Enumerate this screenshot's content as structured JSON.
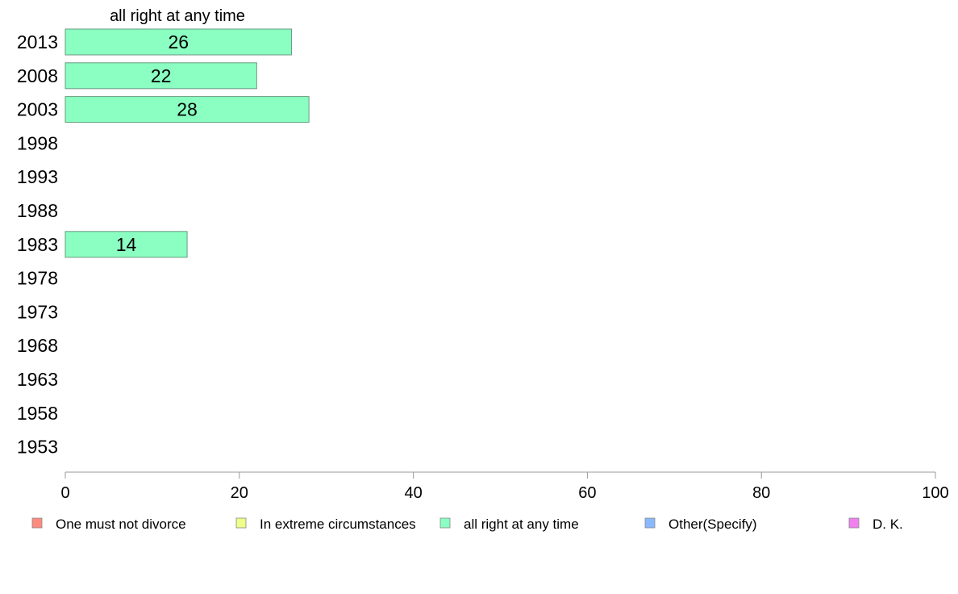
{
  "chart_data": {
    "type": "bar",
    "orientation": "horizontal",
    "categories": [
      "2013",
      "2008",
      "2003",
      "1998",
      "1993",
      "1988",
      "1983",
      "1978",
      "1973",
      "1968",
      "1963",
      "1958",
      "1953"
    ],
    "series": [
      {
        "name": "all right at any time",
        "values": [
          26,
          22,
          28,
          null,
          null,
          null,
          14,
          null,
          null,
          null,
          null,
          null,
          null
        ]
      }
    ],
    "data_labels": [
      "26",
      "22",
      "28",
      "",
      "",
      "",
      "14",
      "",
      "",
      "",
      "",
      "",
      ""
    ],
    "title": "all right at any time",
    "xlabel": "",
    "ylabel": "",
    "xlim": [
      0,
      100
    ],
    "xticks": [
      0,
      20,
      40,
      60,
      80,
      100
    ],
    "grid": false,
    "legend_position": "bottom",
    "legend": [
      {
        "label": "One must not divorce",
        "color": "#ff8a80"
      },
      {
        "label": "In extreme circumstances",
        "color": "#eeff8a"
      },
      {
        "label": "all right at any time",
        "color": "#8affc1"
      },
      {
        "label": "Other(Specify)",
        "color": "#8ab8ff"
      },
      {
        "label": "D. K.",
        "color": "#f080f0"
      }
    ],
    "bar_color": "#8affc1",
    "bar_stroke": "#6a9a82",
    "axis_color": "#999999"
  }
}
